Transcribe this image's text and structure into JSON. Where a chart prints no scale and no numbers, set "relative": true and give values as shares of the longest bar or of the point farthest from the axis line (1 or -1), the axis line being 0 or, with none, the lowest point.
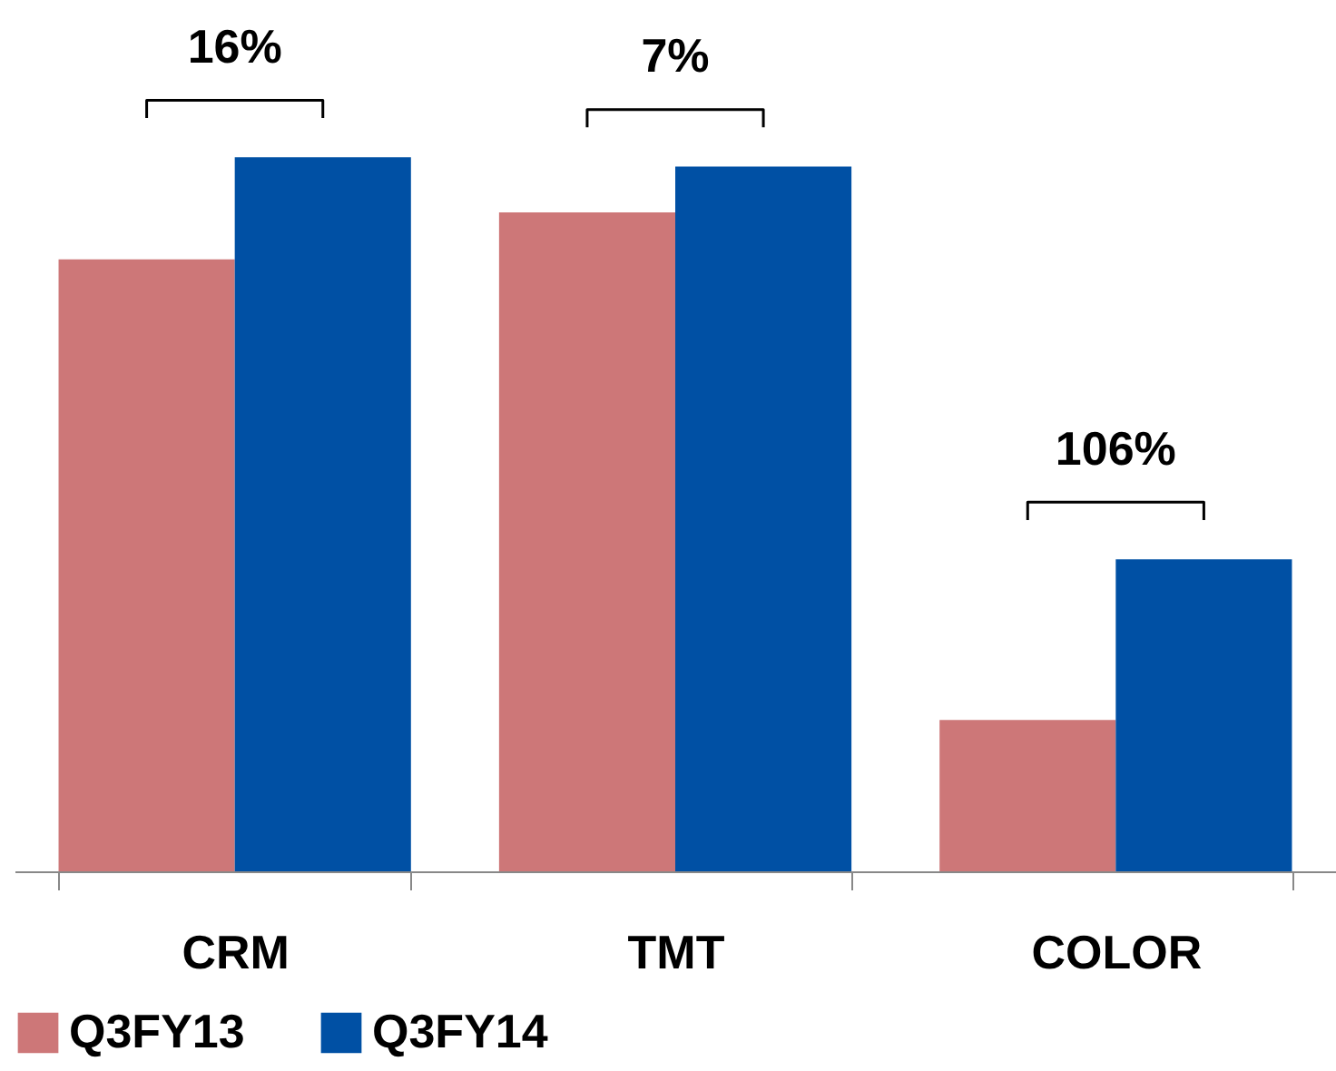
{
  "chart_data": {
    "type": "bar",
    "relative": true,
    "categories": [
      "CRM",
      "TMT",
      "COLOR"
    ],
    "series": [
      {
        "name": "Q3FY13",
        "color": "#cd7778",
        "values": [
          0.857,
          0.923,
          0.212
        ]
      },
      {
        "name": "Q3FY14",
        "color": "#0050a4",
        "values": [
          1,
          0.987,
          0.437
        ]
      }
    ],
    "annotations": [
      "16%",
      "7%",
      "106%"
    ],
    "legend": "bottom"
  }
}
